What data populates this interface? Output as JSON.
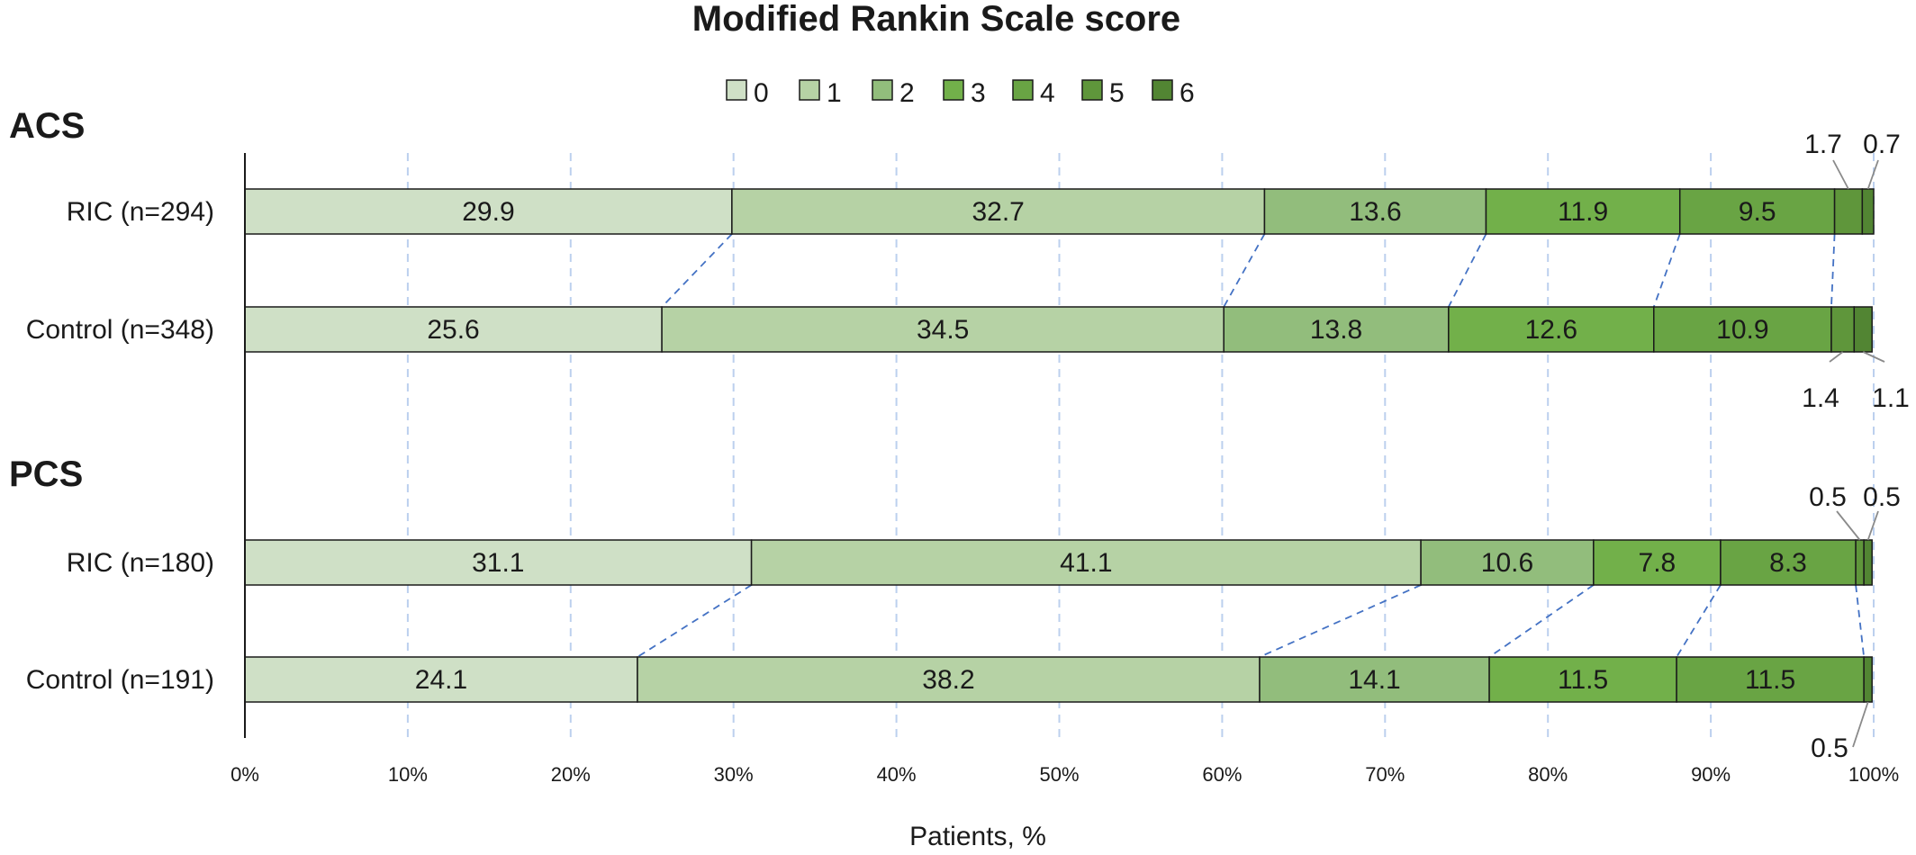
{
  "chart_data": {
    "type": "bar",
    "orientation": "horizontal",
    "stacked": true,
    "title": "Modified Rankin Scale score",
    "xlabel": "Patients, %",
    "xlim": [
      0,
      100
    ],
    "x_ticks": [
      "0%",
      "10%",
      "20%",
      "30%",
      "40%",
      "50%",
      "60%",
      "70%",
      "80%",
      "90%",
      "100%"
    ],
    "grid": "vertical dashed",
    "legend_placement": "top-center",
    "legend": [
      {
        "label": "0",
        "color": "#cfe0c6"
      },
      {
        "label": "1",
        "color": "#b6d2a5"
      },
      {
        "label": "2",
        "color": "#92bd7c"
      },
      {
        "label": "3",
        "color": "#72b04a"
      },
      {
        "label": "4",
        "color": "#69a444"
      },
      {
        "label": "5",
        "color": "#5f963b"
      },
      {
        "label": "6",
        "color": "#528533"
      }
    ],
    "groups": [
      {
        "name": "ACS",
        "rows": [
          {
            "label": "RIC (n=294)",
            "values": [
              29.9,
              32.7,
              13.6,
              11.9,
              9.5,
              1.7,
              0.7
            ],
            "labels": [
              "29.9",
              "32.7",
              "13.6",
              "11.9",
              "9.5",
              "1.7",
              "0.7"
            ]
          },
          {
            "label": "Control (n=348)",
            "values": [
              25.6,
              34.5,
              13.8,
              12.6,
              10.9,
              1.4,
              1.1
            ],
            "labels": [
              "25.6",
              "34.5",
              "13.8",
              "12.6",
              "10.9",
              "1.4",
              "1.1"
            ]
          }
        ]
      },
      {
        "name": "PCS",
        "rows": [
          {
            "label": "RIC (n=180)",
            "values": [
              31.1,
              41.1,
              10.6,
              7.8,
              8.3,
              0.5,
              0.5
            ],
            "labels": [
              "31.1",
              "41.1",
              "10.6",
              "7.8",
              "8.3",
              "0.5",
              "0.5"
            ]
          },
          {
            "label": "Control (n=191)",
            "values": [
              24.1,
              38.2,
              14.1,
              11.5,
              11.5,
              0.0,
              0.5
            ],
            "labels": [
              "24.1",
              "38.2",
              "14.1",
              "11.5",
              "11.5",
              "",
              "0.5"
            ]
          }
        ]
      }
    ]
  }
}
